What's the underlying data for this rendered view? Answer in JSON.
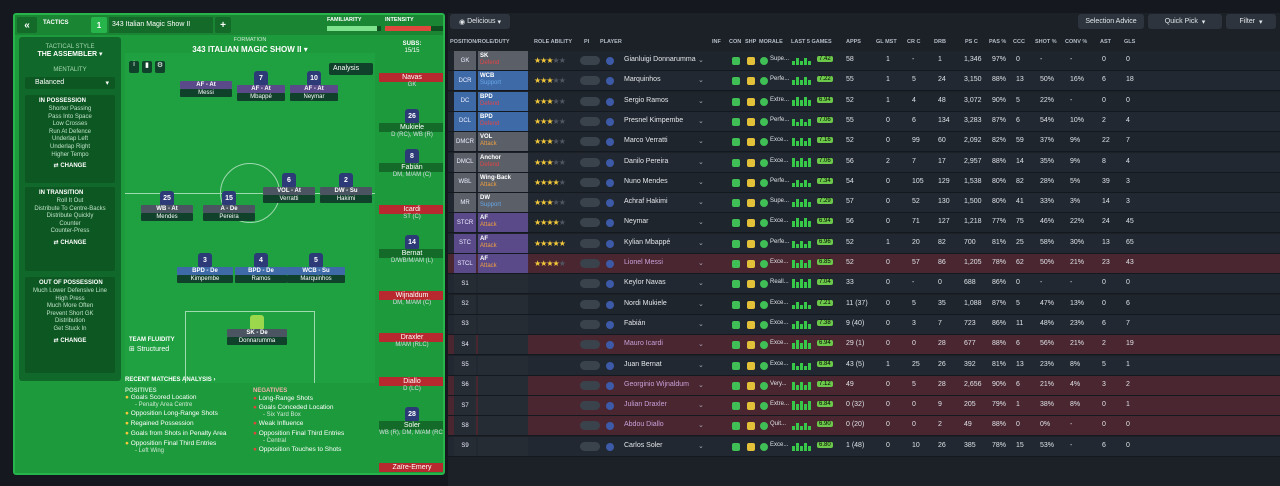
{
  "left": {
    "tab": "TACTICS",
    "tactic_number": "1",
    "tactic_name": "343 Italian Magic Show II",
    "familiarity": "FAMILIARITY",
    "intensity": "INTENSITY",
    "formation_label": "FORMATION",
    "formation_name": "343 ITALIAN MAGIC SHOW II",
    "subs_label": "SUBS:",
    "subs_count": "15/15",
    "analysis": "Analysis",
    "style_label": "TACTICAL STYLE",
    "style_value": "THE ASSEMBLER",
    "mentality_label": "MENTALITY",
    "mentality_value": "Balanced",
    "in_possession": {
      "title": "IN POSSESSION",
      "lines": [
        "Shorter Passing",
        "Pass Into Space",
        "Low Crosses",
        "Run At Defence",
        "Underlap Left",
        "Underlap Right",
        "Higher Tempo"
      ],
      "change": "CHANGE"
    },
    "in_transition": {
      "title": "IN TRANSITION",
      "lines": [
        "Roll It Out",
        "Distribute To Centre-Backs",
        "Distribute Quickly",
        "Counter",
        "Counter-Press"
      ],
      "change": "CHANGE"
    },
    "out_of_possession": {
      "title": "OUT OF POSSESSION",
      "lines": [
        "Much Lower Defensive Line",
        "High Press",
        "Much More Often",
        "Prevent Short GK",
        "Distribution",
        "Get Stuck In"
      ],
      "change": "CHANGE"
    },
    "team_fluidity_label": "TEAM FLUIDITY",
    "team_fluidity_value": "Structured",
    "recent_label": "RECENT MATCHES ANALYSIS",
    "positives_label": "POSITIVES",
    "negatives_label": "NEGATIVES",
    "positives": [
      {
        "t": "Goals Scored Location",
        "s": "- Penalty Area Centre"
      },
      {
        "t": "Opposition Long-Range Shots",
        "s": ""
      },
      {
        "t": "Regained Possession",
        "s": ""
      },
      {
        "t": "Goals from Shots in Penalty Area",
        "s": ""
      },
      {
        "t": "Opposition Final Third Entries",
        "s": "- Left Wing"
      }
    ],
    "negatives": [
      {
        "t": "Long-Range Shots",
        "s": ""
      },
      {
        "t": "Goals Conceded Location",
        "s": "- Six Yard Box"
      },
      {
        "t": "Weak Influence",
        "s": ""
      },
      {
        "t": "Opposition Final Third Entries",
        "s": "- Central"
      },
      {
        "t": "Opposition Touches to Shots",
        "s": ""
      }
    ],
    "players": [
      {
        "n": "Messi",
        "num": "",
        "role": "AF - At"
      },
      {
        "n": "Mbappé",
        "num": "7",
        "role": "AF - At"
      },
      {
        "n": "Neymar",
        "num": "10",
        "role": "AF - At"
      },
      {
        "n": "Hakimi",
        "num": "2",
        "role": "DW - Su"
      },
      {
        "n": "Verratti",
        "num": "6",
        "role": "VOL - At"
      },
      {
        "n": "Mendes",
        "num": "25",
        "role": "WB - At"
      },
      {
        "n": "Pereira",
        "num": "15",
        "role": "A - De"
      },
      {
        "n": "Kimpembe",
        "num": "3",
        "role": "BPD - De"
      },
      {
        "n": "Ramos",
        "num": "4",
        "role": "BPD - De"
      },
      {
        "n": "Marquinhos",
        "num": "5",
        "role": "WCB - Su"
      },
      {
        "n": "Donnarumma",
        "num": "",
        "role": "SK - De"
      }
    ],
    "subs": [
      {
        "n": "Navas",
        "p": "GK",
        "num": "",
        "red": true
      },
      {
        "n": "Mukiele",
        "p": "D (RC), WB (R)",
        "num": "26",
        "red": false
      },
      {
        "n": "Fabián",
        "p": "DM, M/AM (C)",
        "num": "8",
        "red": false
      },
      {
        "n": "Icardi",
        "p": "ST (C)",
        "num": "",
        "red": true
      },
      {
        "n": "Bernat",
        "p": "D/WB/M/AM (L)",
        "num": "14",
        "red": false
      },
      {
        "n": "Wijnaldum",
        "p": "DM, M/AM (C)",
        "num": "",
        "red": true
      },
      {
        "n": "Draxler",
        "p": "M/AM (RLC)",
        "num": "",
        "red": true
      },
      {
        "n": "Diallo",
        "p": "D (LC)",
        "num": "",
        "red": true
      },
      {
        "n": "Soler",
        "p": "WB (R), DM, M/AM (RC)",
        "num": "28",
        "red": false
      },
      {
        "n": "Zaïre-Emery",
        "p": "",
        "num": "",
        "red": true
      }
    ]
  },
  "right": {
    "view": "Delicious",
    "selection_advice": "Selection Advice",
    "quick_pick": "Quick Pick",
    "filter": "Filter",
    "headers": [
      "POSITION/ROLE/DUTY",
      "ROLE ABILITY",
      "PI",
      "PLAYER",
      "INF",
      "CON",
      "SHP",
      "MORALE",
      "LAST 5 GAMES",
      "APPS",
      "GL MST",
      "CR C",
      "DRB",
      "PS C",
      "PAS %",
      "CCC",
      "SHOT %",
      "CONV %",
      "AST",
      "GLS"
    ],
    "rows": [
      {
        "pos": "GK",
        "r1": "SK",
        "r2": "Defend",
        "st": 3,
        "name": "Gianluigi Donnarumma",
        "mor": "Supe...",
        "rt": "7.42",
        "apps": "58",
        "gm": "1",
        "crc": "-",
        "drb": "1",
        "psc": "1,346",
        "pas": "97%",
        "ccc": "0",
        "shot": "-",
        "conv": "-",
        "ast": "0",
        "gls": "0",
        "c": "#5a5f68"
      },
      {
        "pos": "DCR",
        "r1": "WCB",
        "r2": "Support",
        "st": 3,
        "name": "Marquinhos",
        "mor": "Perfe...",
        "rt": "7.22",
        "apps": "55",
        "gm": "1",
        "crc": "5",
        "drb": "24",
        "psc": "3,150",
        "pas": "88%",
        "ccc": "13",
        "shot": "50%",
        "conv": "16%",
        "ast": "6",
        "gls": "18",
        "c": "#3e6ba8"
      },
      {
        "pos": "DC",
        "r1": "BPD",
        "r2": "Defend",
        "st": 3,
        "name": "Sergio Ramos",
        "mor": "Extre...",
        "rt": "6.94",
        "apps": "52",
        "gm": "1",
        "crc": "4",
        "drb": "48",
        "psc": "3,072",
        "pas": "90%",
        "ccc": "5",
        "shot": "22%",
        "conv": "-",
        "ast": "0",
        "gls": "0",
        "c": "#3e6ba8"
      },
      {
        "pos": "DCL",
        "r1": "BPD",
        "r2": "Defend",
        "st": 3,
        "name": "Presnel Kimpembe",
        "mor": "Perfe...",
        "rt": "7.06",
        "apps": "55",
        "gm": "0",
        "crc": "6",
        "drb": "134",
        "psc": "3,283",
        "pas": "87%",
        "ccc": "6",
        "shot": "54%",
        "conv": "10%",
        "ast": "2",
        "gls": "4",
        "c": "#3e6ba8"
      },
      {
        "pos": "DMCR",
        "r1": "VOL",
        "r2": "Attack",
        "st": 2.5,
        "name": "Marco Verratti",
        "mor": "Exce...",
        "rt": "7.16",
        "apps": "52",
        "gm": "0",
        "crc": "99",
        "drb": "60",
        "psc": "2,092",
        "pas": "82%",
        "ccc": "59",
        "shot": "37%",
        "conv": "9%",
        "ast": "22",
        "gls": "7",
        "c": "#5a5f68"
      },
      {
        "pos": "DMCL",
        "r1": "Anchor",
        "r2": "Defend",
        "st": 2.5,
        "name": "Danilo Pereira",
        "mor": "Exce...",
        "rt": "7.06",
        "apps": "56",
        "gm": "2",
        "crc": "7",
        "drb": "17",
        "psc": "2,957",
        "pas": "88%",
        "ccc": "14",
        "shot": "35%",
        "conv": "9%",
        "ast": "8",
        "gls": "4",
        "c": "#5a5f68"
      },
      {
        "pos": "WBL",
        "r1": "Wing-Back",
        "r2": "Attack",
        "st": 4,
        "name": "Nuno Mendes",
        "mor": "Perfe...",
        "rt": "7.34",
        "apps": "54",
        "gm": "0",
        "crc": "105",
        "drb": "129",
        "psc": "1,538",
        "pas": "80%",
        "ccc": "82",
        "shot": "28%",
        "conv": "5%",
        "ast": "39",
        "gls": "3",
        "c": "#5a5f68"
      },
      {
        "pos": "MR",
        "r1": "DW",
        "r2": "Support",
        "st": 3,
        "name": "Achraf Hakimi",
        "mor": "Supe...",
        "rt": "7.29",
        "apps": "57",
        "gm": "0",
        "crc": "52",
        "drb": "130",
        "psc": "1,500",
        "pas": "80%",
        "ccc": "41",
        "shot": "33%",
        "conv": "3%",
        "ast": "14",
        "gls": "3",
        "c": "#5a5f68"
      },
      {
        "pos": "STCR",
        "r1": "AF",
        "r2": "Attack",
        "st": 4,
        "name": "Neymar",
        "mor": "Exce...",
        "rt": "6.94",
        "apps": "56",
        "gm": "0",
        "crc": "71",
        "drb": "127",
        "psc": "1,218",
        "pas": "77%",
        "ccc": "75",
        "shot": "46%",
        "conv": "22%",
        "ast": "24",
        "gls": "45",
        "c": "#5a4a8a"
      },
      {
        "pos": "STC",
        "r1": "AF",
        "r2": "Attack",
        "st": 5,
        "name": "Kylian Mbappé",
        "mor": "Perfe...",
        "rt": "6.96",
        "apps": "52",
        "gm": "1",
        "crc": "20",
        "drb": "82",
        "psc": "700",
        "pas": "81%",
        "ccc": "25",
        "shot": "58%",
        "conv": "30%",
        "ast": "13",
        "gls": "65",
        "c": "#5a4a8a"
      },
      {
        "pos": "STCL",
        "r1": "AF",
        "r2": "Attack",
        "st": 4,
        "name": "Lionel Messi",
        "mor": "Exce...",
        "rt": "6.85",
        "apps": "52",
        "gm": "0",
        "crc": "57",
        "drb": "86",
        "psc": "1,205",
        "pas": "78%",
        "ccc": "62",
        "shot": "50%",
        "conv": "21%",
        "ast": "23",
        "gls": "43",
        "c": "#5a4a8a"
      },
      {
        "pos": "S1",
        "r1": "",
        "r2": "",
        "st": 0,
        "name": "Keylor Navas",
        "mor": "Reall...",
        "rt": "7.04",
        "apps": "33",
        "gm": "0",
        "crc": "-",
        "drb": "0",
        "psc": "688",
        "pas": "86%",
        "ccc": "0",
        "shot": "-",
        "conv": "-",
        "ast": "0",
        "gls": "0",
        "c": ""
      },
      {
        "pos": "S2",
        "r1": "",
        "r2": "",
        "st": 0,
        "name": "Nordi Mukiele",
        "mor": "Exce...",
        "rt": "7.21",
        "apps": "11 (37)",
        "gm": "0",
        "crc": "5",
        "drb": "35",
        "psc": "1,088",
        "pas": "87%",
        "ccc": "5",
        "shot": "47%",
        "conv": "13%",
        "ast": "0",
        "gls": "6",
        "c": ""
      },
      {
        "pos": "S3",
        "r1": "",
        "r2": "",
        "st": 0,
        "name": "Fabián",
        "mor": "Exce...",
        "rt": "7.38",
        "apps": "9 (40)",
        "gm": "0",
        "crc": "3",
        "drb": "7",
        "psc": "723",
        "pas": "86%",
        "ccc": "11",
        "shot": "48%",
        "conv": "23%",
        "ast": "6",
        "gls": "7",
        "c": ""
      },
      {
        "pos": "S4",
        "r1": "",
        "r2": "",
        "st": 0,
        "name": "Mauro Icardi",
        "mor": "Exce...",
        "rt": "6.94",
        "apps": "29 (1)",
        "gm": "0",
        "crc": "0",
        "drb": "28",
        "psc": "677",
        "pas": "88%",
        "ccc": "6",
        "shot": "56%",
        "conv": "21%",
        "ast": "2",
        "gls": "19",
        "c": ""
      },
      {
        "pos": "S5",
        "r1": "",
        "r2": "",
        "st": 0,
        "name": "Juan Bernat",
        "mor": "Exce...",
        "rt": "6.84",
        "apps": "43 (5)",
        "gm": "1",
        "crc": "25",
        "drb": "26",
        "psc": "392",
        "pas": "81%",
        "ccc": "13",
        "shot": "23%",
        "conv": "8%",
        "ast": "5",
        "gls": "1",
        "c": ""
      },
      {
        "pos": "S6",
        "r1": "",
        "r2": "",
        "st": 0,
        "name": "Georginio Wijnaldum",
        "mor": "Very...",
        "rt": "7.12",
        "apps": "49",
        "gm": "0",
        "crc": "5",
        "drb": "28",
        "psc": "2,656",
        "pas": "90%",
        "ccc": "6",
        "shot": "21%",
        "conv": "4%",
        "ast": "3",
        "gls": "2",
        "c": ""
      },
      {
        "pos": "S7",
        "r1": "",
        "r2": "",
        "st": 0,
        "name": "Julian Draxler",
        "mor": "Extre...",
        "rt": "6.84",
        "apps": "0 (32)",
        "gm": "0",
        "crc": "0",
        "drb": "9",
        "psc": "205",
        "pas": "79%",
        "ccc": "1",
        "shot": "38%",
        "conv": "8%",
        "ast": "0",
        "gls": "1",
        "c": ""
      },
      {
        "pos": "S8",
        "r1": "",
        "r2": "",
        "st": 0,
        "name": "Abdou Diallo",
        "mor": "Quit...",
        "rt": "6.90",
        "apps": "0 (20)",
        "gm": "0",
        "crc": "0",
        "drb": "2",
        "psc": "49",
        "pas": "88%",
        "ccc": "0",
        "shot": "0%",
        "conv": "-",
        "ast": "0",
        "gls": "0",
        "c": ""
      },
      {
        "pos": "S9",
        "r1": "",
        "r2": "",
        "st": 0,
        "name": "Carlos Soler",
        "mor": "Exce...",
        "rt": "6.80",
        "apps": "1 (48)",
        "gm": "0",
        "crc": "10",
        "drb": "26",
        "psc": "385",
        "pas": "78%",
        "ccc": "15",
        "shot": "53%",
        "conv": "-",
        "ast": "6",
        "gls": "0",
        "c": ""
      }
    ]
  }
}
